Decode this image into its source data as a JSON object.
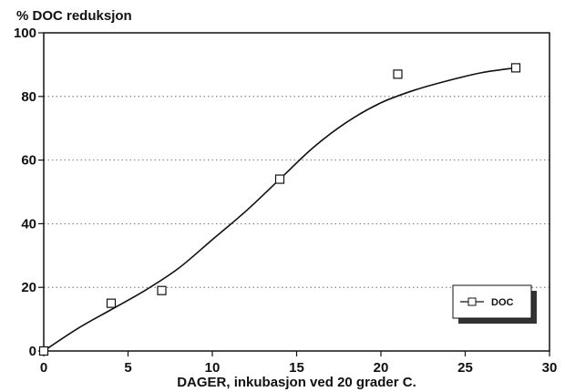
{
  "chart_data": {
    "type": "line",
    "title": "",
    "ylabel": "% DOC reduksjon",
    "xlabel": "DAGER, inkubasjon ved 20 grader C.",
    "xlim": [
      0,
      30
    ],
    "ylim": [
      0,
      100
    ],
    "xticks": [
      0,
      5,
      10,
      15,
      20,
      25,
      30
    ],
    "yticks": [
      0,
      20,
      40,
      60,
      80,
      100
    ],
    "x_tick_labels": [
      "0",
      "5",
      "10",
      "15",
      "20",
      "25",
      "30"
    ],
    "y_tick_labels": [
      "0",
      "20",
      "40",
      "60",
      "80",
      "100"
    ],
    "grid": "horizontal dotted",
    "legend_position": "bottom-right",
    "series": [
      {
        "name": "DOC",
        "marker": "open-square",
        "points": [
          {
            "x": 0,
            "y": 0
          },
          {
            "x": 4,
            "y": 15
          },
          {
            "x": 7,
            "y": 19
          },
          {
            "x": 14,
            "y": 54
          },
          {
            "x": 21,
            "y": 87
          },
          {
            "x": 28,
            "y": 89
          }
        ],
        "smooth_curve": [
          {
            "x": 0,
            "y": 0
          },
          {
            "x": 2,
            "y": 7
          },
          {
            "x": 4,
            "y": 13
          },
          {
            "x": 6,
            "y": 19
          },
          {
            "x": 8,
            "y": 26
          },
          {
            "x": 10,
            "y": 35
          },
          {
            "x": 12,
            "y": 44
          },
          {
            "x": 14,
            "y": 54
          },
          {
            "x": 16,
            "y": 64
          },
          {
            "x": 18,
            "y": 72
          },
          {
            "x": 20,
            "y": 78
          },
          {
            "x": 22,
            "y": 82
          },
          {
            "x": 24,
            "y": 85
          },
          {
            "x": 26,
            "y": 87.5
          },
          {
            "x": 28,
            "y": 89
          }
        ]
      }
    ],
    "colors": {
      "line": "#111111",
      "grid": "#555555",
      "legend_shadow": "#333333"
    }
  }
}
